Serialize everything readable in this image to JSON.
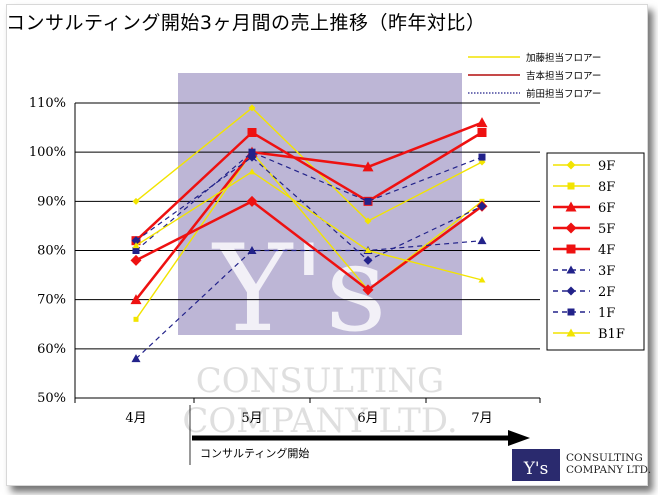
{
  "title": "コンサルティング開始3ヶ月間の売上推移（昨年対比）",
  "colors": {
    "yellow": "#f2e400",
    "red": "#ee1111",
    "navy": "#22228a",
    "watermark_bg": "#bdb6d6"
  },
  "top_legend": [
    {
      "label": "加藤担当フロアー",
      "color": "#f2e400",
      "style": "solid"
    },
    {
      "label": "吉本担当フロアー",
      "color": "#b30d0d",
      "style": "solid"
    },
    {
      "label": "前田担当フロアー",
      "color": "#22228a",
      "style": "dotted"
    }
  ],
  "watermark": {
    "big": "Y's",
    "line1": "CONSULTING",
    "line2": "COMPANY LTD."
  },
  "arrow_label": "コンサルティング開始",
  "logo": {
    "mark": "Y's",
    "line1": "CONSULTING",
    "line2": "COMPANY LTD."
  },
  "chart_data": {
    "type": "line",
    "title": "コンサルティング開始3ヶ月間の売上推移（昨年対比）",
    "categories": [
      "4月",
      "5月",
      "6月",
      "7月"
    ],
    "y_ticks": [
      "50%",
      "60%",
      "70%",
      "80%",
      "90%",
      "100%",
      "110%"
    ],
    "ylim": [
      50,
      110
    ],
    "grid": true,
    "legend_position": "right",
    "series": [
      {
        "name": "9F",
        "values": [
          90,
          109,
          86,
          98
        ],
        "color": "#f2e400",
        "marker": "diamond",
        "dash": false
      },
      {
        "name": "8F",
        "values": [
          66,
          100,
          72,
          90
        ],
        "color": "#f2e400",
        "marker": "square",
        "dash": false
      },
      {
        "name": "6F",
        "values": [
          70,
          100,
          97,
          106
        ],
        "color": "#ee1111",
        "marker": "triangle",
        "dash": false
      },
      {
        "name": "5F",
        "values": [
          78,
          90,
          72,
          89
        ],
        "color": "#ee1111",
        "marker": "diamond",
        "dash": false
      },
      {
        "name": "4F",
        "values": [
          82,
          104,
          90,
          104
        ],
        "color": "#ee1111",
        "marker": "square",
        "dash": false
      },
      {
        "name": "3F",
        "values": [
          58,
          80,
          80,
          82
        ],
        "color": "#22228a",
        "marker": "triangle",
        "dash": true
      },
      {
        "name": "2F",
        "values": [
          82,
          99,
          78,
          89
        ],
        "color": "#22228a",
        "marker": "diamond",
        "dash": true
      },
      {
        "name": "1F",
        "values": [
          80,
          100,
          90,
          99
        ],
        "color": "#22228a",
        "marker": "square",
        "dash": true
      },
      {
        "name": "B1F",
        "values": [
          81,
          96,
          80,
          74
        ],
        "color": "#f2e400",
        "marker": "triangle",
        "dash": false
      }
    ]
  }
}
